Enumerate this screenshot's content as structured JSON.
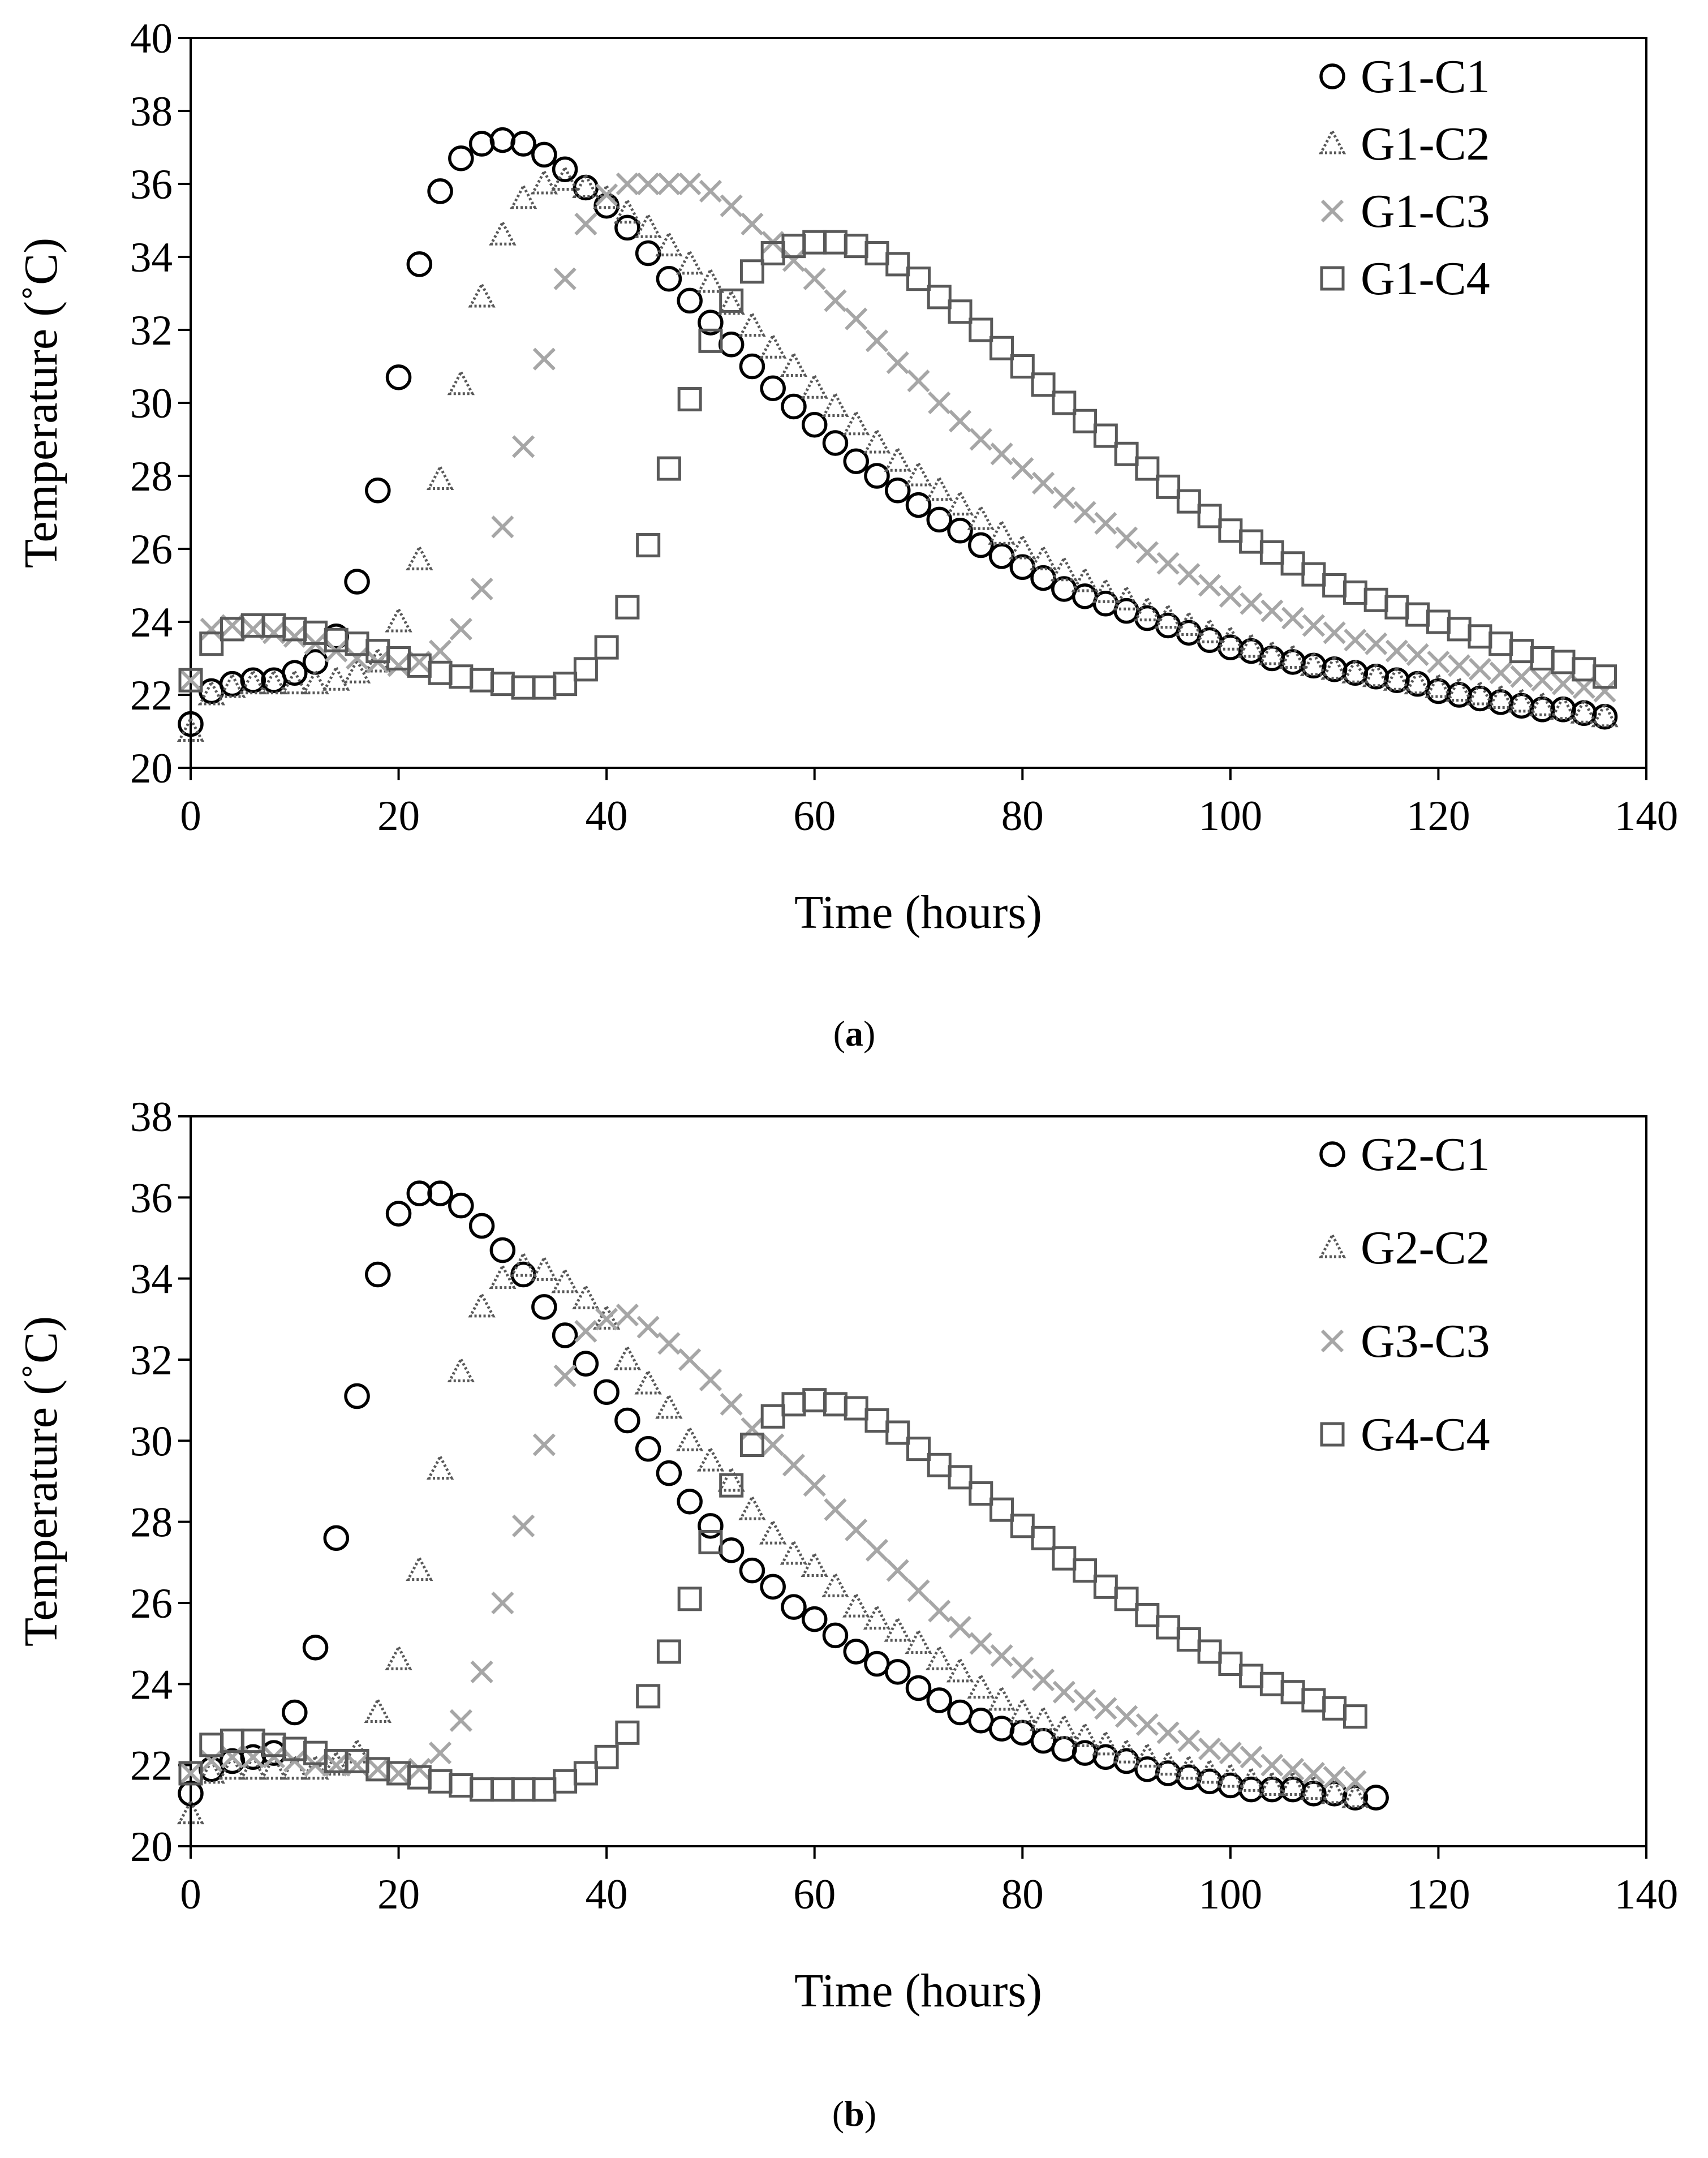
{
  "chart_data": [
    {
      "type": "scatter",
      "caption": {
        "open": "(",
        "letter": "a",
        "close": ")"
      },
      "xlabel": "Time (hours)",
      "ylabel": "Temperature (˚C)",
      "xlim": [
        0,
        140
      ],
      "ylim": [
        20,
        40
      ],
      "xticks": [
        "0",
        "20",
        "40",
        "60",
        "80",
        "100",
        "120",
        "140"
      ],
      "yticks": [
        "20",
        "22",
        "24",
        "26",
        "28",
        "30",
        "32",
        "34",
        "36",
        "38",
        "40"
      ],
      "legend_position": "top-right",
      "grid": false,
      "x": [
        0,
        2,
        4,
        6,
        8,
        10,
        12,
        14,
        16,
        18,
        20,
        22,
        24,
        26,
        28,
        30,
        32,
        34,
        36,
        38,
        40,
        42,
        44,
        46,
        48,
        50,
        52,
        54,
        56,
        58,
        60,
        62,
        64,
        66,
        68,
        70,
        72,
        74,
        76,
        78,
        80,
        82,
        84,
        86,
        88,
        90,
        92,
        94,
        96,
        98,
        100,
        102,
        104,
        106,
        108,
        110,
        112,
        114,
        116,
        118,
        120,
        122,
        124,
        126,
        128,
        130,
        132,
        134,
        136
      ],
      "series": [
        {
          "name": "G1-C1",
          "marker": "circle",
          "color": "#000000",
          "values": [
            21.2,
            22.1,
            22.3,
            22.4,
            22.4,
            22.6,
            22.9,
            23.6,
            25.1,
            27.6,
            30.7,
            33.8,
            35.8,
            36.7,
            37.1,
            37.2,
            37.1,
            36.8,
            36.4,
            35.9,
            35.4,
            34.8,
            34.1,
            33.4,
            32.8,
            32.2,
            31.6,
            31.0,
            30.4,
            29.9,
            29.4,
            28.9,
            28.4,
            28.0,
            27.6,
            27.2,
            26.8,
            26.5,
            26.1,
            25.8,
            25.5,
            25.2,
            24.9,
            24.7,
            24.5,
            24.3,
            24.1,
            23.9,
            23.7,
            23.5,
            23.3,
            23.2,
            23.0,
            22.9,
            22.8,
            22.7,
            22.6,
            22.5,
            22.4,
            22.3,
            22.1,
            22.0,
            21.9,
            21.8,
            21.7,
            21.6,
            21.6,
            21.5,
            21.4
          ]
        },
        {
          "name": "G1-C2",
          "marker": "triangle",
          "color": "#595959",
          "values": [
            21.0,
            22.0,
            22.2,
            22.3,
            22.3,
            22.3,
            22.3,
            22.4,
            22.6,
            22.9,
            24.0,
            25.7,
            27.9,
            30.5,
            32.9,
            34.6,
            35.6,
            36.0,
            36.1,
            35.9,
            35.6,
            35.2,
            34.8,
            34.3,
            33.8,
            33.3,
            32.7,
            32.1,
            31.5,
            31.0,
            30.4,
            29.9,
            29.4,
            28.9,
            28.4,
            28.0,
            27.6,
            27.2,
            26.8,
            26.4,
            26.0,
            25.7,
            25.4,
            25.1,
            24.8,
            24.6,
            24.3,
            24.1,
            23.9,
            23.7,
            23.5,
            23.3,
            23.1,
            23.0,
            22.8,
            22.7,
            22.6,
            22.5,
            22.4,
            22.3,
            22.2,
            22.1,
            22.0,
            21.9,
            21.8,
            21.7,
            21.6,
            21.5,
            21.4
          ]
        },
        {
          "name": "G1-C3",
          "marker": "x",
          "color": "#a6a6a6",
          "values": [
            22.4,
            23.8,
            23.9,
            23.8,
            23.7,
            23.6,
            23.4,
            23.2,
            23.0,
            22.9,
            22.8,
            22.9,
            23.2,
            23.8,
            24.9,
            26.6,
            28.8,
            31.2,
            33.4,
            34.9,
            35.7,
            36.0,
            36.0,
            36.0,
            36.0,
            35.8,
            35.4,
            34.9,
            34.4,
            33.9,
            33.4,
            32.8,
            32.3,
            31.7,
            31.1,
            30.6,
            30.0,
            29.5,
            29.0,
            28.6,
            28.2,
            27.8,
            27.4,
            27.0,
            26.7,
            26.3,
            25.9,
            25.6,
            25.3,
            25.0,
            24.7,
            24.5,
            24.3,
            24.1,
            23.9,
            23.7,
            23.5,
            23.4,
            23.2,
            23.1,
            22.9,
            22.8,
            22.7,
            22.6,
            22.5,
            22.4,
            22.3,
            22.2,
            22.1
          ]
        },
        {
          "name": "G1-C4",
          "marker": "square",
          "color": "#595959",
          "values": [
            22.4,
            23.4,
            23.8,
            23.9,
            23.9,
            23.8,
            23.7,
            23.5,
            23.4,
            23.2,
            23.0,
            22.8,
            22.6,
            22.5,
            22.4,
            22.3,
            22.2,
            22.2,
            22.3,
            22.7,
            23.3,
            24.4,
            26.1,
            28.2,
            30.1,
            31.7,
            32.8,
            33.6,
            34.1,
            34.3,
            34.4,
            34.4,
            34.3,
            34.1,
            33.8,
            33.4,
            32.9,
            32.5,
            32.0,
            31.5,
            31.0,
            30.5,
            30.0,
            29.5,
            29.1,
            28.6,
            28.2,
            27.7,
            27.3,
            26.9,
            26.5,
            26.2,
            25.9,
            25.6,
            25.3,
            25.0,
            24.8,
            24.6,
            24.4,
            24.2,
            24.0,
            23.8,
            23.6,
            23.4,
            23.2,
            23.0,
            22.9,
            22.7,
            22.5
          ]
        }
      ]
    },
    {
      "type": "scatter",
      "caption": {
        "open": "(",
        "letter": "b",
        "close": ")"
      },
      "xlabel": "Time (hours)",
      "ylabel": "Temperature (˚C)",
      "xlim": [
        0,
        140
      ],
      "ylim": [
        20,
        38
      ],
      "xticks": [
        "0",
        "20",
        "40",
        "60",
        "80",
        "100",
        "120",
        "140"
      ],
      "yticks": [
        "20",
        "22",
        "24",
        "26",
        "28",
        "30",
        "32",
        "34",
        "36",
        "38"
      ],
      "legend_position": "top-right",
      "grid": false,
      "series": [
        {
          "name": "G2-C1",
          "marker": "circle",
          "color": "#000000",
          "x": [
            0,
            2,
            4,
            6,
            8,
            10,
            12,
            14,
            16,
            18,
            20,
            22,
            24,
            26,
            28,
            30,
            32,
            34,
            36,
            38,
            40,
            42,
            44,
            46,
            48,
            50,
            52,
            54,
            56,
            58,
            60,
            62,
            64,
            66,
            68,
            70,
            72,
            74,
            76,
            78,
            80,
            82,
            84,
            86,
            88,
            90,
            92,
            94,
            96,
            98,
            100,
            102,
            104,
            106,
            108,
            110,
            112,
            114
          ],
          "values": [
            21.3,
            21.9,
            22.1,
            22.2,
            22.3,
            23.3,
            24.9,
            27.6,
            31.1,
            34.1,
            35.6,
            36.1,
            36.1,
            35.8,
            35.3,
            34.7,
            34.1,
            33.3,
            32.6,
            31.9,
            31.2,
            30.5,
            29.8,
            29.2,
            28.5,
            27.9,
            27.3,
            26.8,
            26.4,
            25.9,
            25.6,
            25.2,
            24.8,
            24.5,
            24.3,
            23.9,
            23.6,
            23.3,
            23.1,
            22.9,
            22.8,
            22.6,
            22.4,
            22.3,
            22.2,
            22.1,
            21.9,
            21.8,
            21.7,
            21.6,
            21.5,
            21.4,
            21.4,
            21.4,
            21.3,
            21.3,
            21.2,
            21.2
          ]
        },
        {
          "name": "G2-C2",
          "marker": "triangle",
          "color": "#595959",
          "x": [
            0,
            2,
            4,
            6,
            8,
            10,
            12,
            14,
            16,
            18,
            20,
            22,
            24,
            26,
            28,
            30,
            32,
            34,
            36,
            38,
            40,
            42,
            44,
            46,
            48,
            50,
            52,
            54,
            56,
            58,
            60,
            62,
            64,
            66,
            68,
            70,
            72,
            74,
            76,
            78,
            80,
            82,
            84,
            86,
            88,
            90,
            92,
            94,
            96,
            98,
            100,
            102,
            104,
            106,
            108,
            110,
            112
          ],
          "values": [
            20.8,
            21.8,
            21.9,
            21.9,
            21.9,
            21.9,
            21.9,
            22.0,
            22.3,
            23.3,
            24.6,
            26.8,
            29.3,
            31.7,
            33.3,
            34.0,
            34.3,
            34.2,
            33.9,
            33.5,
            33.0,
            32.0,
            31.4,
            30.8,
            30.0,
            29.5,
            29.0,
            28.3,
            27.7,
            27.2,
            26.9,
            26.4,
            25.9,
            25.6,
            25.3,
            25.0,
            24.6,
            24.3,
            23.9,
            23.6,
            23.3,
            23.1,
            22.9,
            22.7,
            22.5,
            22.3,
            22.2,
            22.0,
            21.9,
            21.8,
            21.7,
            21.6,
            21.5,
            21.5,
            21.4,
            21.3,
            21.2
          ]
        },
        {
          "name": "G3-C3",
          "marker": "x",
          "color": "#a6a6a6",
          "x": [
            0,
            2,
            4,
            6,
            8,
            10,
            12,
            14,
            16,
            18,
            20,
            22,
            24,
            26,
            28,
            30,
            32,
            34,
            36,
            38,
            40,
            42,
            44,
            46,
            48,
            50,
            52,
            54,
            56,
            58,
            60,
            62,
            64,
            66,
            68,
            70,
            72,
            74,
            76,
            78,
            80,
            82,
            84,
            86,
            88,
            90,
            92,
            94,
            96,
            98,
            100,
            102,
            104,
            106,
            108,
            110,
            112
          ],
          "values": [
            21.8,
            22.1,
            22.2,
            22.2,
            22.2,
            22.1,
            22.0,
            22.0,
            22.0,
            21.9,
            21.8,
            21.9,
            22.3,
            23.1,
            24.3,
            26.0,
            27.9,
            29.9,
            31.6,
            32.7,
            33.0,
            33.1,
            32.8,
            32.4,
            32.0,
            31.5,
            30.9,
            30.3,
            29.9,
            29.4,
            28.9,
            28.3,
            27.8,
            27.3,
            26.8,
            26.3,
            25.8,
            25.4,
            25.0,
            24.7,
            24.4,
            24.1,
            23.8,
            23.6,
            23.4,
            23.2,
            23.0,
            22.8,
            22.6,
            22.4,
            22.3,
            22.2,
            22.0,
            21.9,
            21.8,
            21.7,
            21.6
          ]
        },
        {
          "name": "G4-C4",
          "marker": "square",
          "color": "#595959",
          "x": [
            0,
            2,
            4,
            6,
            8,
            10,
            12,
            14,
            16,
            18,
            20,
            22,
            24,
            26,
            28,
            30,
            32,
            34,
            36,
            38,
            40,
            42,
            44,
            46,
            48,
            50,
            52,
            54,
            56,
            58,
            60,
            62,
            64,
            66,
            68,
            70,
            72,
            74,
            76,
            78,
            80,
            82,
            84,
            86,
            88,
            90,
            92,
            94,
            96,
            98,
            100,
            102,
            104,
            106,
            108,
            110,
            112
          ],
          "values": [
            21.8,
            22.5,
            22.6,
            22.6,
            22.5,
            22.4,
            22.3,
            22.1,
            22.1,
            21.9,
            21.8,
            21.7,
            21.6,
            21.5,
            21.4,
            21.4,
            21.4,
            21.4,
            21.6,
            21.8,
            22.2,
            22.8,
            23.7,
            24.8,
            26.1,
            27.5,
            28.9,
            29.9,
            30.6,
            30.9,
            31.0,
            30.9,
            30.8,
            30.5,
            30.2,
            29.8,
            29.4,
            29.1,
            28.7,
            28.3,
            27.9,
            27.6,
            27.1,
            26.8,
            26.4,
            26.1,
            25.7,
            25.4,
            25.1,
            24.8,
            24.5,
            24.2,
            24.0,
            23.8,
            23.6,
            23.4,
            23.2
          ]
        }
      ]
    }
  ]
}
